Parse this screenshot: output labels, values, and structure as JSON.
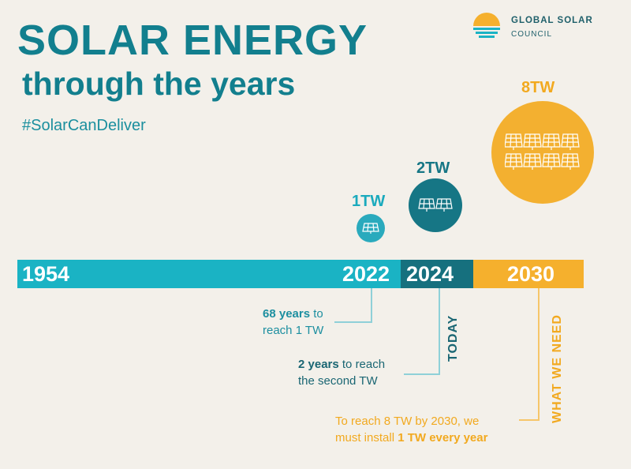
{
  "title": {
    "line1": "SOLAR ENERGY",
    "line2": "through the years",
    "hashtag": "#SolarCanDeliver"
  },
  "logo": {
    "name_line1": "GLOBAL SOLAR",
    "name_line2": "COUNCIL",
    "colors": {
      "sun": "#f5b02d",
      "water": "#1ab3c4"
    }
  },
  "timeline": {
    "years": [
      "1954",
      "2022",
      "2024",
      "2030"
    ],
    "colors": {
      "past": "#1ab3c4",
      "today": "#16707e",
      "future": "#f5b02d"
    }
  },
  "milestones": [
    {
      "label": "1TW",
      "year": "2022",
      "panels": 1,
      "color": "#2aaabd"
    },
    {
      "label": "2TW",
      "year": "2024",
      "panels": 2,
      "color": "#167685"
    },
    {
      "label": "8TW",
      "year": "2030",
      "panels": 8,
      "color": "#f3b030"
    }
  ],
  "markers": {
    "today": "TODAY",
    "what_we_need": "WHAT WE NEED"
  },
  "notes": {
    "n1_bold": "68 years",
    "n1_rest": " to",
    "n1_line2": "reach 1 TW",
    "n2_bold": "2 years",
    "n2_rest": " to reach",
    "n2_line2": "the second TW",
    "n3_line1": "To reach 8 TW by 2030, we",
    "n3_pre": "must install ",
    "n3_bold": "1 TW every year"
  },
  "icons": [
    "solar-panel-icon",
    "sun-water-logo-icon"
  ]
}
